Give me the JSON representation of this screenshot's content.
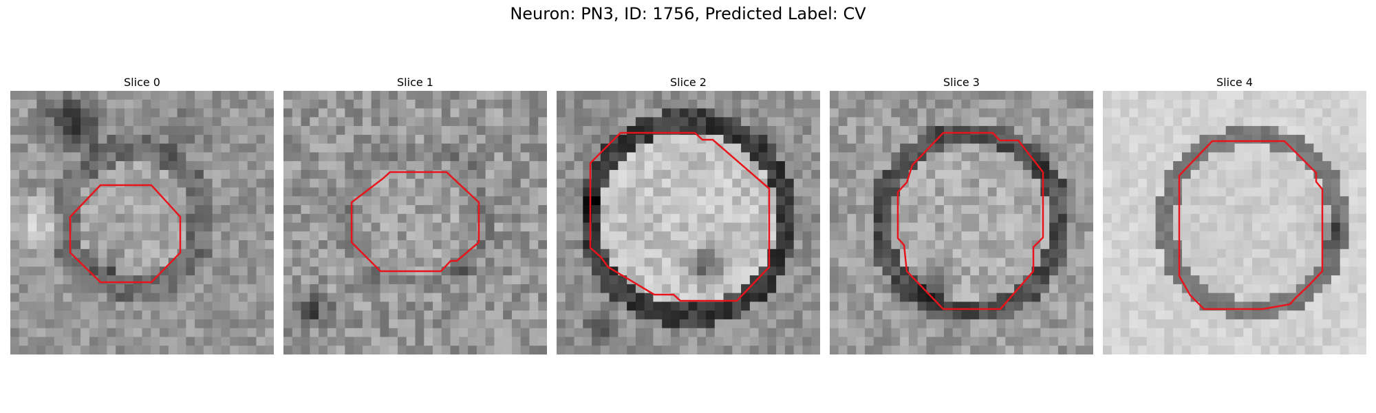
{
  "figure": {
    "title": "Neuron: PN3, ID: 1756, Predicted Label: CV"
  },
  "panels": [
    {
      "title": "Slice 0"
    },
    {
      "title": "Slice 1"
    },
    {
      "title": "Slice 2"
    },
    {
      "title": "Slice 3"
    },
    {
      "title": "Slice 4"
    }
  ],
  "colors": {
    "contour": "#e8141b"
  },
  "image_grid_size": 30
}
